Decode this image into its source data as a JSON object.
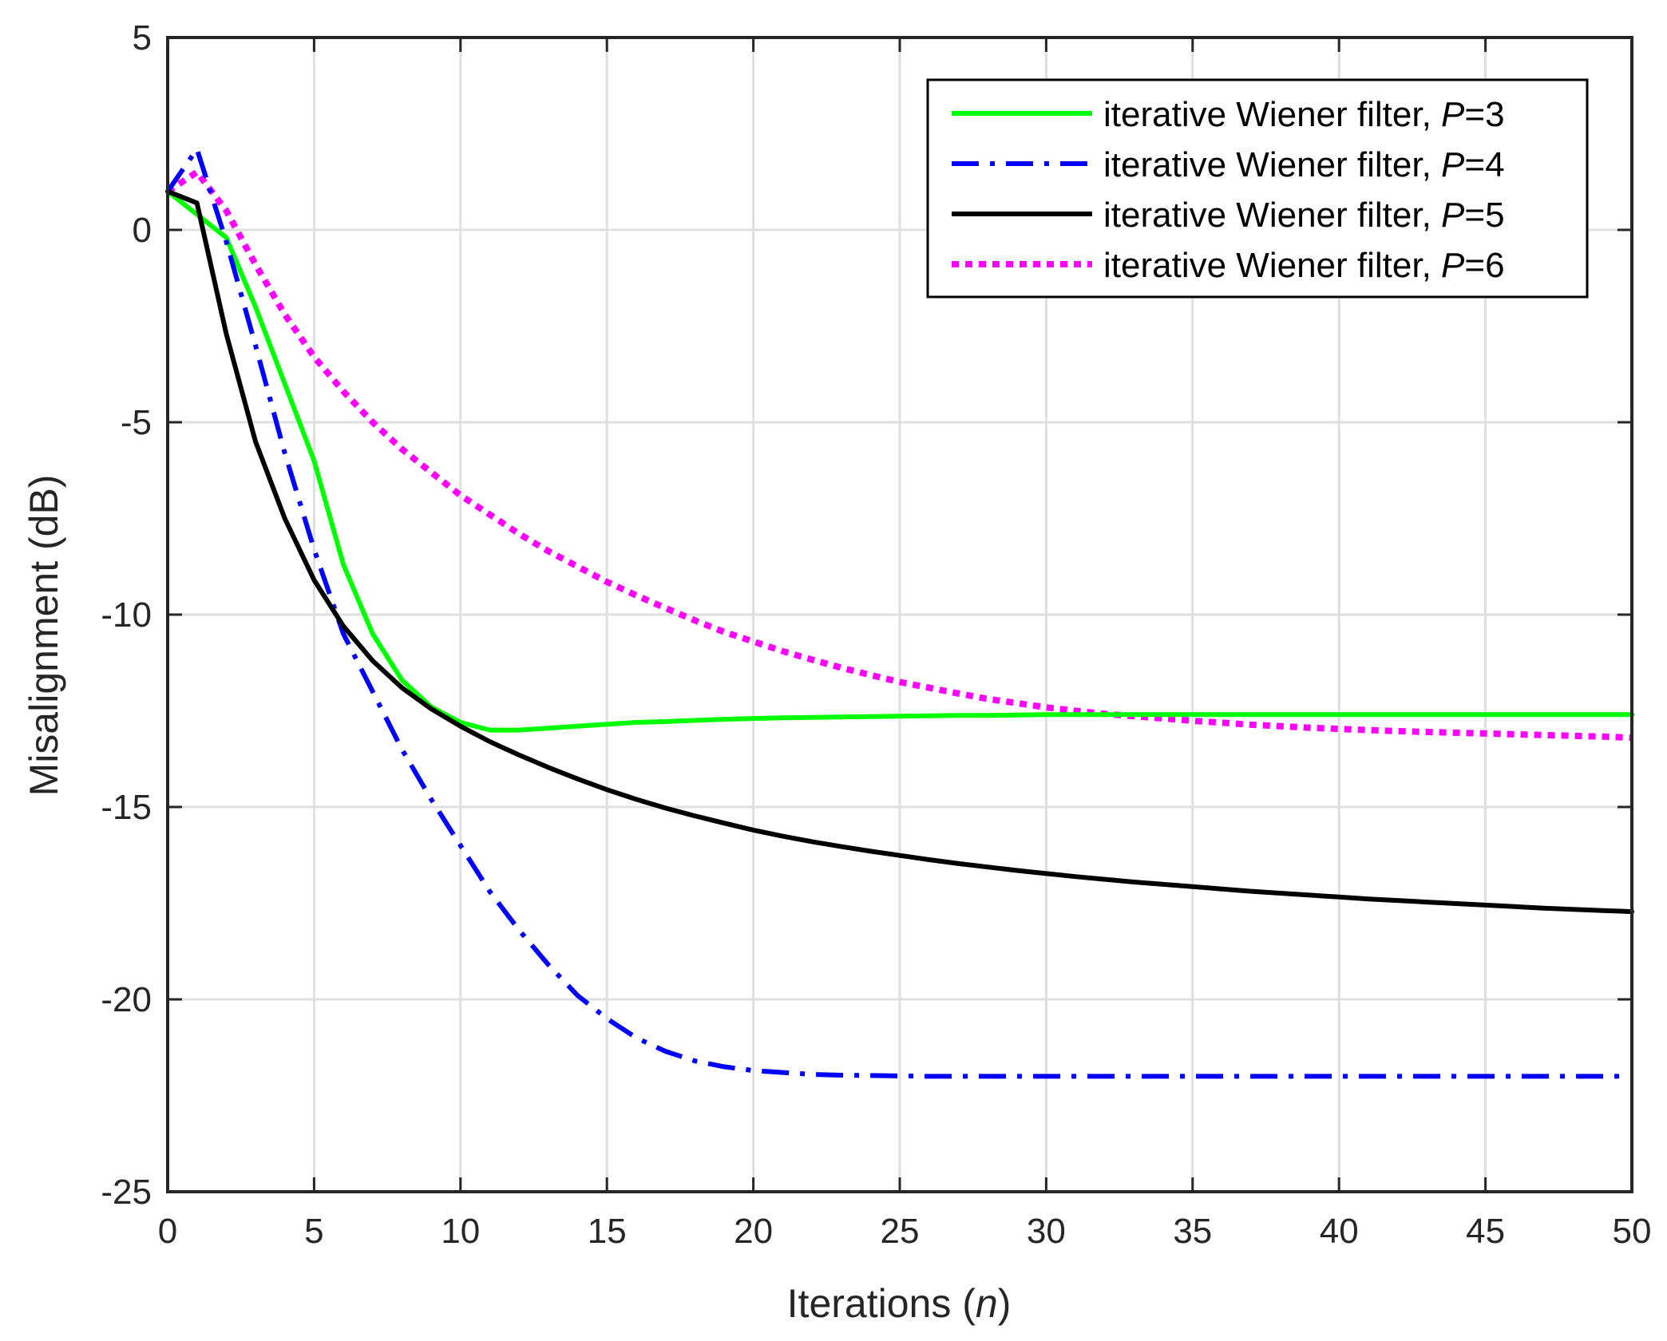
{
  "chart_data": {
    "type": "line",
    "title": "",
    "xlabel": "Iterations (n)",
    "xlabel_main": "Iterations (",
    "xlabel_var": "n",
    "xlabel_tail": ")",
    "ylabel": "Misalignment (dB)",
    "xlim": [
      0,
      50
    ],
    "ylim": [
      -25,
      5
    ],
    "xticks": [
      0,
      5,
      10,
      15,
      20,
      25,
      30,
      35,
      40,
      45,
      50
    ],
    "yticks": [
      5,
      0,
      -5,
      -10,
      -15,
      -20,
      -25
    ],
    "grid": true,
    "legend_position": "top-right",
    "x": [
      0,
      1,
      2,
      3,
      4,
      5,
      6,
      7,
      8,
      9,
      10,
      11,
      12,
      13,
      14,
      15,
      16,
      17,
      18,
      19,
      20,
      21,
      22,
      23,
      24,
      25,
      26,
      27,
      28,
      29,
      30,
      31,
      32,
      33,
      34,
      35,
      36,
      37,
      38,
      39,
      40,
      41,
      42,
      43,
      44,
      45,
      46,
      47,
      48,
      49,
      50
    ],
    "series": [
      {
        "name": "iterative Wiener filter, P=3",
        "label_prefix": "iterative Wiener filter,",
        "param_name": "P",
        "param_value": "=3",
        "color": "#00ff00",
        "dash": "solid",
        "values": [
          1.0,
          0.4,
          -0.2,
          -2.0,
          -4.0,
          -6.0,
          -8.7,
          -10.5,
          -11.7,
          -12.4,
          -12.8,
          -13.0,
          -13.0,
          -12.95,
          -12.9,
          -12.85,
          -12.8,
          -12.78,
          -12.75,
          -12.72,
          -12.7,
          -12.68,
          -12.67,
          -12.66,
          -12.65,
          -12.64,
          -12.63,
          -12.62,
          -12.62,
          -12.61,
          -12.6,
          -12.6,
          -12.6,
          -12.6,
          -12.6,
          -12.6,
          -12.6,
          -12.6,
          -12.6,
          -12.6,
          -12.6,
          -12.6,
          -12.6,
          -12.6,
          -12.6,
          -12.6,
          -12.6,
          -12.6,
          -12.6,
          -12.6,
          -12.6
        ]
      },
      {
        "name": "iterative Wiener filter, P=4",
        "label_prefix": "iterative Wiener filter,",
        "param_name": "P",
        "param_value": "=4",
        "color": "#0000ff",
        "dash": "dashdot",
        "values": [
          1.0,
          2.1,
          -0.3,
          -3.0,
          -5.8,
          -8.3,
          -10.5,
          -12.0,
          -13.5,
          -14.8,
          -16.0,
          -17.2,
          -18.2,
          -19.1,
          -19.9,
          -20.5,
          -21.0,
          -21.35,
          -21.6,
          -21.75,
          -21.85,
          -21.9,
          -21.95,
          -21.97,
          -21.98,
          -21.99,
          -22.0,
          -22.0,
          -22.0,
          -22.0,
          -22.0,
          -22.0,
          -22.0,
          -22.0,
          -22.0,
          -22.0,
          -22.0,
          -22.0,
          -22.0,
          -22.0,
          -22.0,
          -22.0,
          -22.0,
          -22.0,
          -22.0,
          -22.0,
          -22.0,
          -22.0,
          -22.0,
          -22.0,
          -22.0
        ]
      },
      {
        "name": "iterative Wiener filter, P=5",
        "label_prefix": "iterative Wiener filter,",
        "param_name": "P",
        "param_value": "=5",
        "color": "#000000",
        "dash": "solid",
        "values": [
          1.0,
          0.7,
          -2.7,
          -5.5,
          -7.5,
          -9.1,
          -10.3,
          -11.2,
          -11.9,
          -12.45,
          -12.9,
          -13.3,
          -13.65,
          -13.97,
          -14.27,
          -14.55,
          -14.8,
          -15.03,
          -15.23,
          -15.42,
          -15.6,
          -15.76,
          -15.9,
          -16.03,
          -16.15,
          -16.26,
          -16.37,
          -16.47,
          -16.56,
          -16.65,
          -16.73,
          -16.81,
          -16.88,
          -16.95,
          -17.01,
          -17.07,
          -17.13,
          -17.19,
          -17.24,
          -17.29,
          -17.34,
          -17.39,
          -17.43,
          -17.47,
          -17.51,
          -17.55,
          -17.59,
          -17.63,
          -17.66,
          -17.69,
          -17.72
        ]
      },
      {
        "name": "iterative Wiener filter, P=6",
        "label_prefix": "iterative Wiener filter,",
        "param_name": "P",
        "param_value": "=6",
        "color": "#ff00ff",
        "dash": "dotted",
        "values": [
          1.0,
          1.5,
          0.5,
          -0.9,
          -2.2,
          -3.3,
          -4.2,
          -5.0,
          -5.7,
          -6.3,
          -6.9,
          -7.4,
          -7.9,
          -8.35,
          -8.75,
          -9.15,
          -9.5,
          -9.83,
          -10.15,
          -10.45,
          -10.7,
          -10.95,
          -11.17,
          -11.38,
          -11.57,
          -11.75,
          -11.9,
          -12.05,
          -12.19,
          -12.3,
          -12.41,
          -12.5,
          -12.58,
          -12.64,
          -12.7,
          -12.76,
          -12.81,
          -12.86,
          -12.9,
          -12.94,
          -12.97,
          -13.0,
          -13.03,
          -13.05,
          -13.07,
          -13.09,
          -13.11,
          -13.13,
          -13.15,
          -13.17,
          -13.2
        ]
      }
    ]
  }
}
